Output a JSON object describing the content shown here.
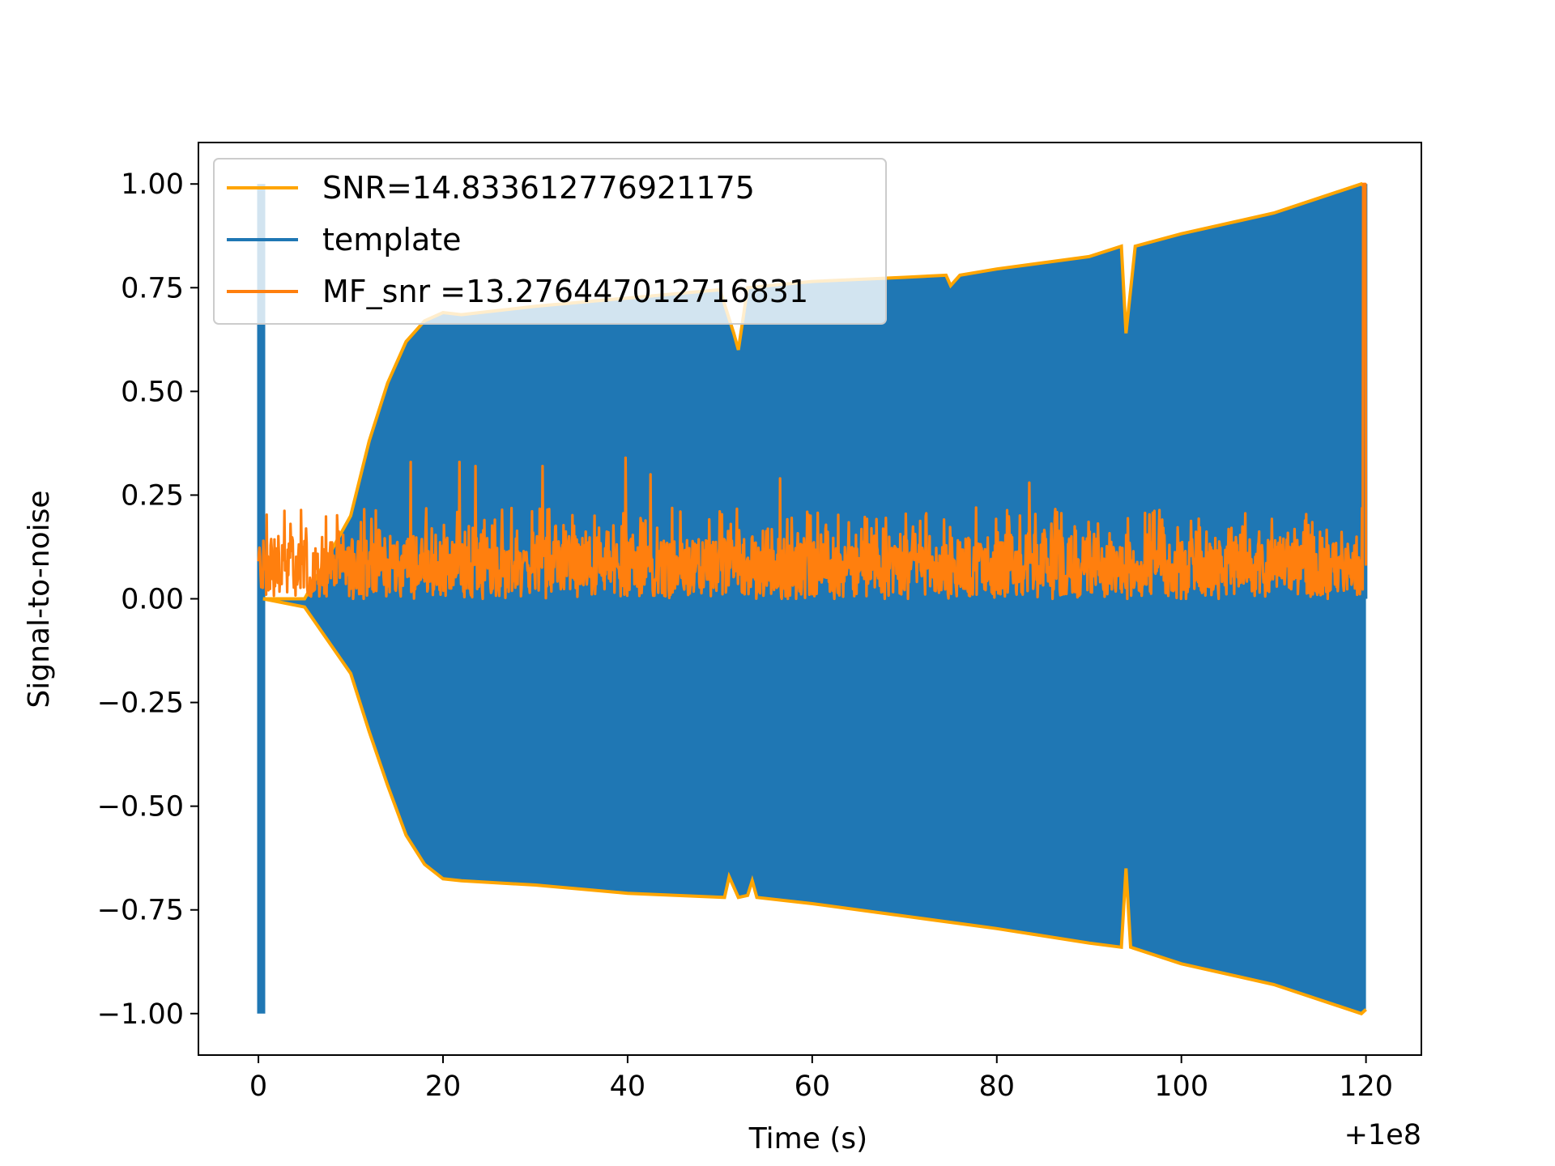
{
  "chart_data": {
    "type": "line",
    "title": "",
    "xlabel": "Time (s)",
    "ylabel": "Signal-to-noise",
    "x_offset_label": "+1e8",
    "xlim": [
      -6.5,
      126
    ],
    "ylim": [
      -1.1,
      1.1
    ],
    "xticks": [
      0,
      20,
      40,
      60,
      80,
      100,
      120
    ],
    "xtick_labels": [
      "0",
      "20",
      "40",
      "60",
      "80",
      "100",
      "120"
    ],
    "yticks": [
      1.0,
      0.75,
      0.5,
      0.25,
      0.0,
      -0.25,
      -0.5,
      -0.75,
      -1.0
    ],
    "ytick_labels": [
      "1.00",
      "0.75",
      "0.50",
      "0.25",
      "0.00",
      "−0.25",
      "−0.50",
      "−0.75",
      "−1.00"
    ],
    "grid": false,
    "legend": {
      "placement": "upper-left",
      "entries": [
        {
          "label": "SNR=14.833612776921175",
          "color": "#ffa500"
        },
        {
          "label": "template",
          "color": "#1f77b4"
        },
        {
          "label": " MF_snr =13.276447012716831",
          "color": "#ff7f0e"
        }
      ]
    },
    "series": [
      {
        "name": "SNR=14.833612776921175",
        "color": "#ffa500",
        "role": "envelope",
        "upper": {
          "x": [
            0.5,
            5,
            10,
            12,
            14,
            16,
            18,
            20,
            22,
            30,
            40,
            50,
            51.5,
            52,
            53,
            60,
            70,
            74.5,
            75,
            76,
            80,
            90,
            93.5,
            94,
            95,
            100,
            110,
            119.5,
            120
          ],
          "y": [
            0.0,
            0.0,
            0.2,
            0.38,
            0.52,
            0.62,
            0.67,
            0.69,
            0.685,
            0.705,
            0.725,
            0.745,
            0.64,
            0.6,
            0.75,
            0.765,
            0.775,
            0.78,
            0.755,
            0.78,
            0.795,
            0.825,
            0.85,
            0.64,
            0.85,
            0.88,
            0.93,
            1.0,
            0.99
          ]
        },
        "lower": {
          "x": [
            0.5,
            5,
            10,
            12,
            14,
            16,
            18,
            20,
            22,
            30,
            40,
            50.5,
            51,
            52,
            53,
            53.5,
            54,
            60,
            70,
            80,
            90,
            93.5,
            94,
            94.5,
            100,
            110,
            119.5,
            120
          ],
          "y": [
            0.0,
            -0.02,
            -0.18,
            -0.32,
            -0.45,
            -0.57,
            -0.64,
            -0.675,
            -0.68,
            -0.69,
            -0.71,
            -0.72,
            -0.67,
            -0.72,
            -0.715,
            -0.68,
            -0.72,
            -0.735,
            -0.765,
            -0.795,
            -0.83,
            -0.84,
            -0.65,
            -0.84,
            -0.88,
            -0.93,
            -1.0,
            -0.99
          ]
        }
      },
      {
        "name": "template",
        "color": "#1f77b4",
        "role": "oscillation-band",
        "spike": {
          "x": 0.3,
          "ymin": -1.0,
          "ymax": 1.0
        },
        "right_spike": {
          "x": 119.8,
          "ymin": 0.0,
          "ymax": 1.0
        }
      },
      {
        "name": " MF_snr =13.276447012716831",
        "color": "#ff7f0e",
        "role": "noisy-line",
        "x_range": [
          0,
          120
        ],
        "baseline": 0.08,
        "typical_range": [
          0.0,
          0.22
        ],
        "peaks": [
          {
            "x": 16.5,
            "y": 0.33
          },
          {
            "x": 21.8,
            "y": 0.33
          },
          {
            "x": 23.5,
            "y": 0.32
          },
          {
            "x": 30.8,
            "y": 0.32
          },
          {
            "x": 39.8,
            "y": 0.34
          },
          {
            "x": 42.5,
            "y": 0.3
          },
          {
            "x": 56.5,
            "y": 0.29
          },
          {
            "x": 83.5,
            "y": 0.28
          },
          {
            "x": 119.9,
            "y": 1.0
          }
        ]
      }
    ]
  }
}
